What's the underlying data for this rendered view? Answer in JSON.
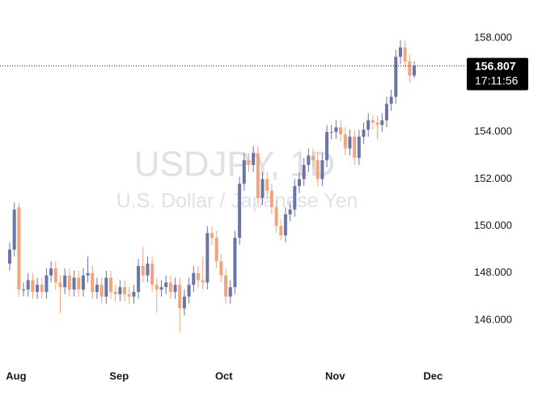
{
  "chart_data": {
    "type": "candlestick",
    "title": "USDJPY, 1D",
    "subtitle": "U.S. Dollar / Japanese Yen",
    "up_color": "#6a75a7",
    "down_color": "#f4a47c",
    "open": [
      148.4,
      149.0,
      150.8,
      147.3,
      147.3,
      147.7,
      147.2,
      147.5,
      147.2,
      147.9,
      148.2,
      147.6,
      147.4,
      147.9,
      147.3,
      147.8,
      147.3,
      147.9,
      148.0,
      147.2,
      147.5,
      147.0,
      147.8,
      147.2,
      147.1,
      147.4,
      147.1,
      147.0,
      147.2,
      148.3,
      147.9,
      148.4,
      147.5,
      147.3,
      147.4,
      147.6,
      147.2,
      147.5,
      146.5,
      147.0,
      147.5,
      148.0,
      147.7,
      147.6,
      149.7,
      149.5,
      148.5,
      147.9,
      147.0,
      147.4,
      149.5,
      151.8,
      152.8,
      152.6,
      153.1,
      151.2,
      152.0,
      151.5,
      150.8,
      150.0,
      149.6,
      150.5,
      150.7,
      151.7,
      152.0,
      152.6,
      153.0,
      152.8,
      152.0,
      152.8,
      154.0,
      154.0,
      154.2,
      153.9,
      153.3,
      153.8,
      152.9,
      153.8,
      154.1,
      154.5,
      154.4,
      154.3,
      154.5,
      155.2,
      155.5,
      157.2,
      157.6,
      157.0,
      156.4
    ],
    "high": [
      149.3,
      151.0,
      151.0,
      147.6,
      148.0,
      148.0,
      147.8,
      147.8,
      148.2,
      148.5,
      148.5,
      147.9,
      148.2,
      148.2,
      148.1,
      148.1,
      148.2,
      148.7,
      148.3,
      147.8,
      147.8,
      148.1,
      148.1,
      147.5,
      147.7,
      147.7,
      147.4,
      147.5,
      148.6,
      149.1,
      148.7,
      148.7,
      147.8,
      147.7,
      147.9,
      147.9,
      147.8,
      147.8,
      147.3,
      147.8,
      148.3,
      148.3,
      148.7,
      150.0,
      150.0,
      149.8,
      148.8,
      148.2,
      147.7,
      149.8,
      152.1,
      153.1,
      153.1,
      153.4,
      153.4,
      152.3,
      152.3,
      151.8,
      151.1,
      150.3,
      150.8,
      151.0,
      152.0,
      152.3,
      152.9,
      153.3,
      153.3,
      153.1,
      153.1,
      154.3,
      154.3,
      154.5,
      154.5,
      154.2,
      154.1,
      154.1,
      154.1,
      154.4,
      154.8,
      154.7,
      154.7,
      154.8,
      155.5,
      155.8,
      157.5,
      157.9,
      157.9,
      157.3,
      157.0
    ],
    "low": [
      148.1,
      148.7,
      147.0,
      147.0,
      147.0,
      146.9,
      146.9,
      146.9,
      146.9,
      147.6,
      147.3,
      146.3,
      147.1,
      147.0,
      147.0,
      147.0,
      147.0,
      147.6,
      146.9,
      146.9,
      146.7,
      146.7,
      146.9,
      146.8,
      146.8,
      146.8,
      146.7,
      146.7,
      146.9,
      147.6,
      147.6,
      147.2,
      146.3,
      147.0,
      147.1,
      146.9,
      146.9,
      145.5,
      146.2,
      146.7,
      147.2,
      147.4,
      147.3,
      147.3,
      149.2,
      148.2,
      147.6,
      146.7,
      146.7,
      147.1,
      149.2,
      151.5,
      152.3,
      152.3,
      150.9,
      150.9,
      151.2,
      150.5,
      149.7,
      149.4,
      149.3,
      150.2,
      150.4,
      151.4,
      151.7,
      152.3,
      152.5,
      151.7,
      151.7,
      152.5,
      153.7,
      153.7,
      153.6,
      153.0,
      153.0,
      152.6,
      152.6,
      153.5,
      153.8,
      154.1,
      153.7,
      154.0,
      154.2,
      154.9,
      155.2,
      156.9,
      156.7,
      156.1,
      156.3
    ],
    "close": [
      149.0,
      150.7,
      147.3,
      147.3,
      147.7,
      147.2,
      147.5,
      147.2,
      147.9,
      148.2,
      147.6,
      147.4,
      147.9,
      147.3,
      147.8,
      147.3,
      147.9,
      148.0,
      147.2,
      147.5,
      147.0,
      147.8,
      147.2,
      147.1,
      147.4,
      147.1,
      147.0,
      147.2,
      148.3,
      147.9,
      148.4,
      147.5,
      147.3,
      147.4,
      147.6,
      147.2,
      147.5,
      146.5,
      147.0,
      147.5,
      148.0,
      147.7,
      147.6,
      149.7,
      149.5,
      148.5,
      147.9,
      147.0,
      147.4,
      149.5,
      151.8,
      152.8,
      152.6,
      153.1,
      151.2,
      152.0,
      151.5,
      150.8,
      150.0,
      149.6,
      150.5,
      150.7,
      151.7,
      152.0,
      152.6,
      153.0,
      152.8,
      152.0,
      152.8,
      154.0,
      154.0,
      154.2,
      153.9,
      153.3,
      153.8,
      152.9,
      153.8,
      154.1,
      154.5,
      154.4,
      154.3,
      154.5,
      155.2,
      155.5,
      157.2,
      157.6,
      157.0,
      156.4,
      156.807
    ],
    "last_price": 156.807,
    "last_time": "17:11:56",
    "xlim": [
      -2.11,
      98.2
    ],
    "xticks": [
      {
        "value": 1.4,
        "label": "Aug"
      },
      {
        "value": 23.8,
        "label": "Sep"
      },
      {
        "value": 46.6,
        "label": "Oct"
      },
      {
        "value": 70.8,
        "label": "Nov"
      },
      {
        "value": 92.1,
        "label": "Dec"
      }
    ],
    "ylim": [
      144.14,
      159.616
    ],
    "yticks": [
      {
        "value": 146,
        "label": "146.000"
      },
      {
        "value": 148,
        "label": "148.000"
      },
      {
        "value": 150,
        "label": "150.000"
      },
      {
        "value": 152,
        "label": "152.000"
      },
      {
        "value": 154,
        "label": "154.000"
      },
      {
        "value": 156,
        "label": "156.000"
      },
      {
        "value": 158,
        "label": "158.000"
      }
    ]
  }
}
